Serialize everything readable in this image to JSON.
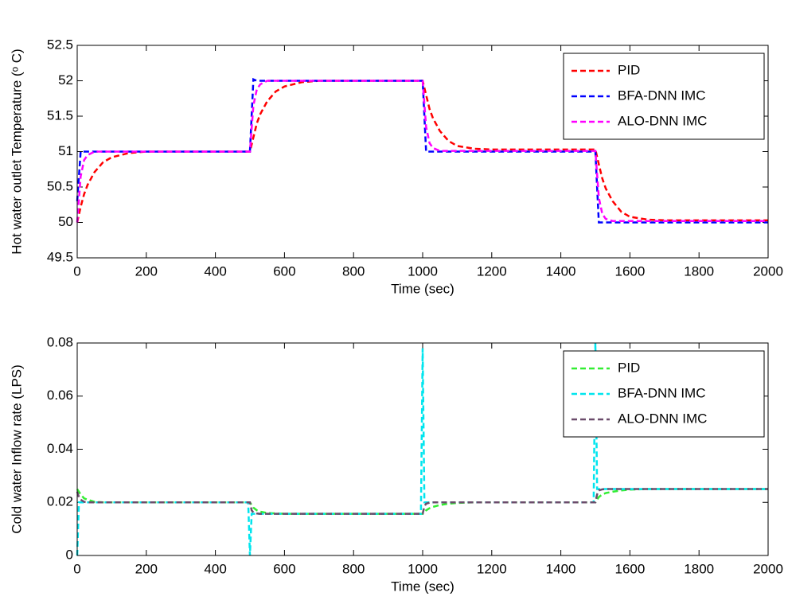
{
  "chart_data": [
    {
      "type": "line",
      "xlabel": "Time (sec)",
      "ylabel": "Hot water outlet Temperature (ᵒ C)",
      "x": [
        0,
        10,
        20,
        30,
        50,
        75,
        100,
        150,
        200,
        500,
        510,
        520,
        530,
        550,
        575,
        600,
        650,
        700,
        1000,
        1010,
        1020,
        1030,
        1050,
        1075,
        1100,
        1150,
        1200,
        1500,
        1510,
        1520,
        1530,
        1550,
        1575,
        1600,
        1650,
        1700,
        2000
      ],
      "series": [
        {
          "name": "PID",
          "color": "#ff0000",
          "values": [
            50,
            50.22,
            50.4,
            50.53,
            50.71,
            50.85,
            50.92,
            50.98,
            51,
            51,
            51.2,
            51.4,
            51.53,
            51.71,
            51.85,
            51.92,
            51.98,
            52,
            52,
            51.8,
            51.6,
            51.47,
            51.29,
            51.15,
            51.08,
            51.04,
            51.03,
            51.03,
            50.82,
            50.62,
            50.48,
            50.3,
            50.15,
            50.08,
            50.04,
            50.03,
            50.03
          ]
        },
        {
          "name": "BFA-DNN IMC",
          "color": "#0000ff",
          "values": [
            50.3,
            51,
            51,
            51,
            51,
            51,
            51,
            51,
            51,
            51,
            52.02,
            52,
            52,
            52,
            52,
            52,
            52,
            52,
            52,
            51,
            51,
            51,
            51,
            51,
            51,
            51,
            51,
            51,
            50,
            50,
            50,
            50,
            50,
            50,
            50,
            50,
            50
          ]
        },
        {
          "name": "ALO-DNN IMC",
          "color": "#ff00ff",
          "values": [
            50,
            50.65,
            50.88,
            50.95,
            51,
            51,
            51,
            51,
            51,
            51,
            51.65,
            51.88,
            51.95,
            52,
            52,
            52,
            52,
            52,
            52,
            51.35,
            51.12,
            51.05,
            51.01,
            51.01,
            51.01,
            51.01,
            51.01,
            51.01,
            50.35,
            50.12,
            50.05,
            50.02,
            50.02,
            50.02,
            50.02,
            50.02,
            50.02
          ]
        }
      ],
      "xlim": [
        0,
        2000
      ],
      "xticks": [
        0,
        200,
        400,
        600,
        800,
        1000,
        1200,
        1400,
        1600,
        1800,
        2000
      ],
      "ylim": [
        49.5,
        52.5
      ],
      "yticks": [
        49.5,
        50,
        50.5,
        51,
        51.5,
        52,
        52.5
      ],
      "grid": false,
      "legend": "upper right"
    },
    {
      "type": "line",
      "xlabel": "Time (sec)",
      "ylabel": "Cold water Inflow rate (LPS)",
      "x": [
        0,
        5,
        10,
        20,
        30,
        50,
        75,
        100,
        200,
        495,
        500,
        505,
        510,
        520,
        530,
        550,
        575,
        600,
        650,
        700,
        995,
        1000,
        1005,
        1010,
        1020,
        1030,
        1050,
        1075,
        1100,
        1150,
        1200,
        1495,
        1500,
        1505,
        1510,
        1520,
        1530,
        1550,
        1575,
        1600,
        1650,
        1700,
        2000
      ],
      "series": [
        {
          "name": "PID",
          "color": "#33ee33",
          "values": [
            0.025,
            0.024,
            0.023,
            0.0215,
            0.021,
            0.0202,
            0.02,
            0.02,
            0.02,
            0.02,
            0.02,
            0.019,
            0.018,
            0.017,
            0.0165,
            0.016,
            0.0158,
            0.0157,
            0.0157,
            0.0157,
            0.0157,
            0.0157,
            0.0165,
            0.017,
            0.0178,
            0.0183,
            0.019,
            0.0195,
            0.0198,
            0.02,
            0.02,
            0.02,
            0.02,
            0.021,
            0.022,
            0.023,
            0.0235,
            0.024,
            0.0245,
            0.0248,
            0.025,
            0.025,
            0.025
          ]
        },
        {
          "name": "BFA-DNN IMC",
          "color": "#00e5ee",
          "values": [
            0,
            0.02,
            0.02,
            0.02,
            0.02,
            0.02,
            0.02,
            0.02,
            0.02,
            0.02,
            0,
            0.0157,
            0.0157,
            0.0157,
            0.0157,
            0.0157,
            0.0157,
            0.0157,
            0.0157,
            0.0157,
            0.0157,
            0.078,
            0.02,
            0.02,
            0.02,
            0.02,
            0.02,
            0.02,
            0.02,
            0.02,
            0.02,
            0.02,
            0.08,
            0.025,
            0.025,
            0.025,
            0.025,
            0.025,
            0.025,
            0.025,
            0.025,
            0.025,
            0.025
          ]
        },
        {
          "name": "ALO-DNN IMC",
          "color": "#6b4c6b",
          "values": [
            0.024,
            0.022,
            0.021,
            0.0202,
            0.02,
            0.02,
            0.02,
            0.02,
            0.02,
            0.02,
            0.02,
            0.017,
            0.0162,
            0.0158,
            0.0157,
            0.0157,
            0.0157,
            0.0157,
            0.0157,
            0.0157,
            0.0157,
            0.0157,
            0.0185,
            0.0195,
            0.0199,
            0.02,
            0.02,
            0.02,
            0.02,
            0.02,
            0.02,
            0.02,
            0.02,
            0.023,
            0.0245,
            0.0249,
            0.025,
            0.025,
            0.025,
            0.025,
            0.025,
            0.025,
            0.025
          ]
        }
      ],
      "xlim": [
        0,
        2000
      ],
      "xticks": [
        0,
        200,
        400,
        600,
        800,
        1000,
        1200,
        1400,
        1600,
        1800,
        2000
      ],
      "ylim": [
        0,
        0.08
      ],
      "yticks": [
        0,
        0.02,
        0.04,
        0.06,
        0.08
      ],
      "grid": false,
      "legend": "upper right"
    }
  ]
}
